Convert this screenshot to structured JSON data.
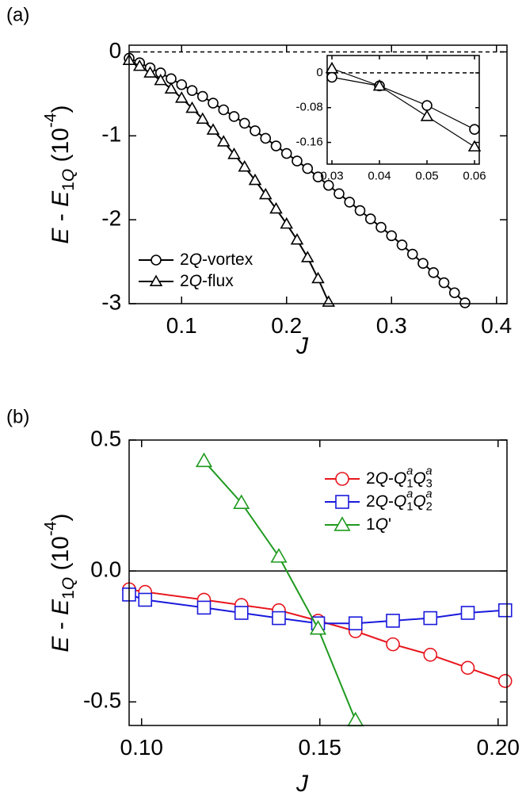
{
  "chart_data": [
    {
      "type": "line",
      "panel_label": "(a)",
      "xlabel": "J",
      "ylabel": "E - E1Q (10-4)",
      "xlim": [
        0.05,
        0.41
      ],
      "ylim": [
        -3,
        0.08
      ],
      "xticks": [
        0.1,
        0.2,
        0.3,
        0.4
      ],
      "yticks": [
        0,
        -1,
        -2,
        -3
      ],
      "zero_line": "dashed",
      "legend": "lower left",
      "series": [
        {
          "name": "2Q-vortex",
          "color": "#000000",
          "marker": "circle",
          "x": [
            0.05,
            0.06,
            0.07,
            0.08,
            0.09,
            0.1,
            0.11,
            0.12,
            0.13,
            0.14,
            0.15,
            0.16,
            0.17,
            0.18,
            0.19,
            0.2,
            0.21,
            0.22,
            0.23,
            0.24,
            0.25,
            0.26,
            0.27,
            0.28,
            0.29,
            0.3,
            0.31,
            0.32,
            0.33,
            0.34,
            0.35,
            0.36,
            0.37
          ],
          "values": [
            -0.075,
            -0.13,
            -0.19,
            -0.25,
            -0.32,
            -0.39,
            -0.46,
            -0.53,
            -0.61,
            -0.69,
            -0.77,
            -0.85,
            -0.94,
            -1.03,
            -1.12,
            -1.21,
            -1.3,
            -1.39,
            -1.49,
            -1.59,
            -1.69,
            -1.79,
            -1.89,
            -1.99,
            -2.09,
            -2.19,
            -2.3,
            -2.41,
            -2.52,
            -2.63,
            -2.75,
            -2.87,
            -2.99
          ]
        },
        {
          "name": "2Q-flux",
          "color": "#000000",
          "marker": "triangle",
          "x": [
            0.05,
            0.06,
            0.07,
            0.08,
            0.09,
            0.1,
            0.11,
            0.12,
            0.13,
            0.14,
            0.15,
            0.16,
            0.17,
            0.18,
            0.19,
            0.2,
            0.21,
            0.22,
            0.23,
            0.24
          ],
          "values": [
            -0.1,
            -0.17,
            -0.25,
            -0.34,
            -0.44,
            -0.55,
            -0.67,
            -0.8,
            -0.93,
            -1.07,
            -1.22,
            -1.37,
            -1.53,
            -1.7,
            -1.87,
            -2.05,
            -2.24,
            -2.45,
            -2.7,
            -2.98
          ]
        }
      ]
    },
    {
      "type": "line",
      "xlim": [
        0.029,
        0.061
      ],
      "ylim": [
        -0.21,
        0.04
      ],
      "xticks": [
        0.03,
        0.04,
        0.05,
        0.06
      ],
      "yticks": [
        0,
        -0.08,
        -0.16
      ],
      "zero_line": "dashed",
      "series": [
        {
          "color": "#000000",
          "marker": "circle",
          "x": [
            0.03,
            0.04,
            0.05,
            0.06
          ],
          "values": [
            -0.01,
            -0.03,
            -0.075,
            -0.13
          ]
        },
        {
          "color": "#000000",
          "marker": "triangle",
          "x": [
            0.03,
            0.04,
            0.05,
            0.06
          ],
          "values": [
            0.01,
            -0.03,
            -0.1,
            -0.17
          ]
        }
      ]
    },
    {
      "type": "line",
      "panel_label": "(b)",
      "xlabel": "J",
      "ylabel": "E - E1Q (10-4)",
      "xlim": [
        0.0965,
        0.2025
      ],
      "ylim": [
        -0.59,
        0.5
      ],
      "xticks": [
        {
          "value": 0.1,
          "label": "0.10"
        },
        {
          "value": 0.15,
          "label": "0.15"
        },
        {
          "value": 0.2,
          "label": "0.20"
        }
      ],
      "yticks": [
        0.5,
        {
          "value": 0,
          "label": "0.0"
        },
        -0.5
      ],
      "zero_line": "solid",
      "legend": "upper right",
      "series": [
        {
          "name": "2Q-Q1aQ3a",
          "color": "#e8141c",
          "marker": "circle",
          "x": [
            0.0965,
            0.101,
            0.1175,
            0.128,
            0.1385,
            0.1495,
            0.16,
            0.1705,
            0.181,
            0.1915,
            0.202
          ],
          "values": [
            -0.07,
            -0.08,
            -0.11,
            -0.13,
            -0.15,
            -0.19,
            -0.23,
            -0.28,
            -0.32,
            -0.37,
            -0.42
          ]
        },
        {
          "name": "2Q-Q1aQ2a",
          "color": "#1a1adc",
          "marker": "square",
          "x": [
            0.0965,
            0.101,
            0.1175,
            0.128,
            0.1385,
            0.1495,
            0.16,
            0.1705,
            0.181,
            0.1915,
            0.202
          ],
          "values": [
            -0.09,
            -0.11,
            -0.14,
            -0.16,
            -0.18,
            -0.2,
            -0.2,
            -0.19,
            -0.18,
            -0.16,
            -0.15
          ]
        },
        {
          "name": "1Q'",
          "color": "#1f9a1f",
          "marker": "triangle",
          "x": [
            0.1175,
            0.128,
            0.1385,
            0.1495,
            0.16
          ],
          "values": [
            0.42,
            0.26,
            0.055,
            -0.22,
            -0.57
          ]
        }
      ]
    }
  ]
}
